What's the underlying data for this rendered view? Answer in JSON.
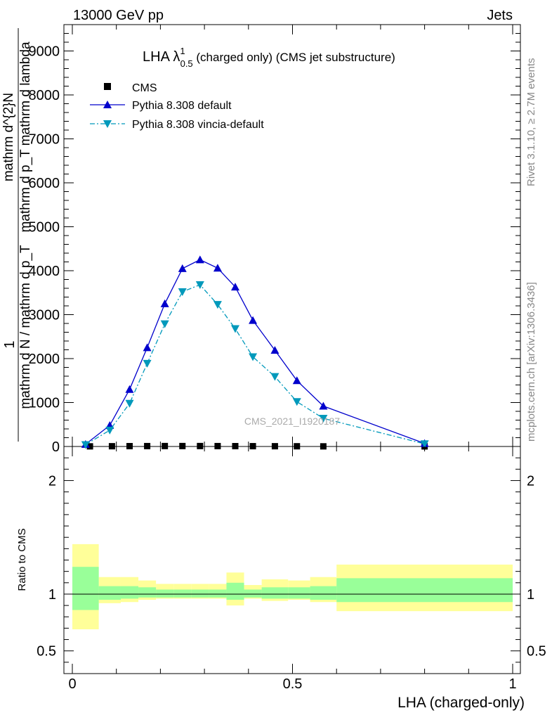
{
  "header": {
    "left": "13000 GeV pp",
    "right": "Jets"
  },
  "side_labels": {
    "rivet": "Rivet 3.1.10, ≥ 2.7M events",
    "mcplots": "mcplots.cern.ch [arXiv:1306.3436]"
  },
  "watermark": "CMS_2021_I1920187",
  "chart_data": [
    {
      "type": "line",
      "title": {
        "prefix": "LHA λ",
        "sup": "1",
        "sub": "0.5",
        "suffix": " (charged only) (CMS jet substructure)"
      },
      "ylabel": {
        "one": "1",
        "denominator": "mathrm d N / mathrm d p_T",
        "numerator_top": "mathrm d^{2}N",
        "numerator_bottom": "mathrm d p_T mathrm d lambda"
      },
      "xlim": [
        0,
        1
      ],
      "ylim": [
        0,
        9600
      ],
      "yticks": [
        {
          "v": 0,
          "label": "0"
        },
        {
          "v": 1000,
          "label": "1000"
        },
        {
          "v": 2000,
          "label": "2000"
        },
        {
          "v": 3000,
          "label": "3000"
        },
        {
          "v": 4000,
          "label": "4000"
        },
        {
          "v": 5000,
          "label": "5000"
        },
        {
          "v": 6000,
          "label": "6000"
        },
        {
          "v": 7000,
          "label": "7000"
        },
        {
          "v": 8000,
          "label": "8000"
        },
        {
          "v": 9000,
          "label": "9000"
        }
      ],
      "legend_position": "top-left",
      "series": [
        {
          "name": "CMS",
          "style": "marker",
          "color": "#000000",
          "x": [
            0.04,
            0.09,
            0.13,
            0.17,
            0.21,
            0.25,
            0.29,
            0.33,
            0.37,
            0.41,
            0.46,
            0.51,
            0.57,
            0.8
          ],
          "y": [
            3,
            6,
            8,
            9,
            10,
            10,
            10,
            9,
            8,
            7,
            6,
            5,
            3,
            2
          ]
        },
        {
          "name": "Pythia 8.308 default",
          "style": "solid",
          "color": "#0000cc",
          "marker": "triangle-up",
          "x": [
            0.03,
            0.085,
            0.13,
            0.17,
            0.21,
            0.25,
            0.29,
            0.33,
            0.37,
            0.41,
            0.46,
            0.51,
            0.57,
            0.8
          ],
          "y": [
            50,
            480,
            1300,
            2250,
            3250,
            4050,
            4250,
            4060,
            3630,
            2870,
            2190,
            1500,
            920,
            70
          ]
        },
        {
          "name": "Pythia 8.308 vincia-default",
          "style": "dashdot",
          "color": "#0099bb",
          "marker": "triangle-down",
          "x": [
            0.03,
            0.085,
            0.13,
            0.17,
            0.21,
            0.25,
            0.29,
            0.33,
            0.37,
            0.41,
            0.46,
            0.51,
            0.57,
            0.8
          ],
          "y": [
            40,
            370,
            980,
            1890,
            2790,
            3520,
            3680,
            3230,
            2680,
            2040,
            1590,
            1020,
            640,
            60
          ]
        }
      ]
    },
    {
      "type": "area",
      "ylabel": "Ratio to CMS",
      "xlabel": "LHA (charged-only)",
      "xlim": [
        0,
        1
      ],
      "ylim": [
        0.3,
        2.3
      ],
      "yticks": [
        {
          "v": 0.5,
          "label": "0.5"
        },
        {
          "v": 1,
          "label": "1"
        },
        {
          "v": 2,
          "label": "2"
        }
      ],
      "xticks": [
        {
          "v": 0,
          "label": "0"
        },
        {
          "v": 0.5,
          "label": "0.5"
        },
        {
          "v": 1,
          "label": "1"
        }
      ],
      "reference_line": 1,
      "bands": [
        {
          "x0": 0.0,
          "x1": 0.06,
          "inner": [
            0.86,
            1.24
          ],
          "outer": [
            0.69,
            1.44
          ]
        },
        {
          "x0": 0.06,
          "x1": 0.11,
          "inner": [
            0.95,
            1.07
          ],
          "outer": [
            0.92,
            1.15
          ]
        },
        {
          "x0": 0.11,
          "x1": 0.15,
          "inner": [
            0.96,
            1.07
          ],
          "outer": [
            0.93,
            1.15
          ]
        },
        {
          "x0": 0.15,
          "x1": 0.19,
          "inner": [
            0.97,
            1.06
          ],
          "outer": [
            0.95,
            1.12
          ]
        },
        {
          "x0": 0.19,
          "x1": 0.23,
          "inner": [
            0.97,
            1.04
          ],
          "outer": [
            0.96,
            1.09
          ]
        },
        {
          "x0": 0.23,
          "x1": 0.27,
          "inner": [
            0.97,
            1.04
          ],
          "outer": [
            0.96,
            1.09
          ]
        },
        {
          "x0": 0.27,
          "x1": 0.31,
          "inner": [
            0.97,
            1.04
          ],
          "outer": [
            0.96,
            1.09
          ]
        },
        {
          "x0": 0.31,
          "x1": 0.35,
          "inner": [
            0.97,
            1.04
          ],
          "outer": [
            0.96,
            1.09
          ]
        },
        {
          "x0": 0.35,
          "x1": 0.39,
          "inner": [
            0.95,
            1.1
          ],
          "outer": [
            0.9,
            1.19
          ]
        },
        {
          "x0": 0.39,
          "x1": 0.43,
          "inner": [
            0.97,
            1.04
          ],
          "outer": [
            0.96,
            1.08
          ]
        },
        {
          "x0": 0.43,
          "x1": 0.49,
          "inner": [
            0.96,
            1.06
          ],
          "outer": [
            0.94,
            1.13
          ]
        },
        {
          "x0": 0.49,
          "x1": 0.54,
          "inner": [
            0.96,
            1.06
          ],
          "outer": [
            0.95,
            1.12
          ]
        },
        {
          "x0": 0.54,
          "x1": 0.6,
          "inner": [
            0.95,
            1.07
          ],
          "outer": [
            0.93,
            1.15
          ]
        },
        {
          "x0": 0.6,
          "x1": 1.0,
          "inner": [
            0.93,
            1.14
          ],
          "outer": [
            0.85,
            1.26
          ]
        }
      ],
      "inner_color": "#99ff99",
      "outer_color": "#ffff99"
    }
  ]
}
